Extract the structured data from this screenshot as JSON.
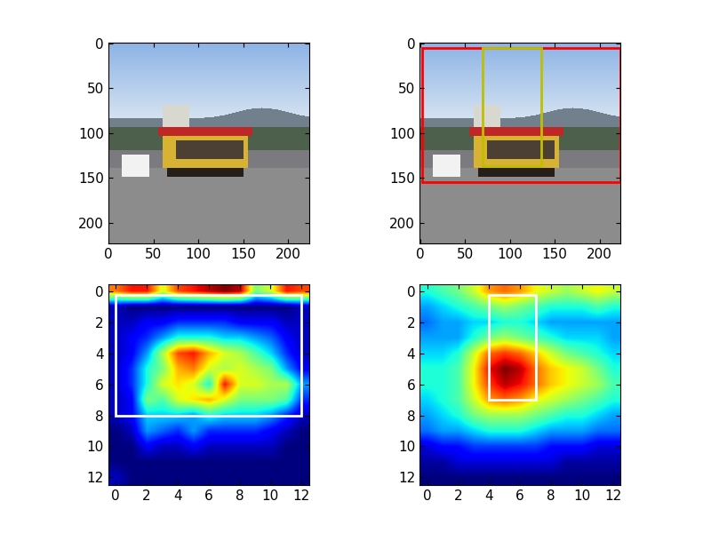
{
  "chart_data": [
    {
      "type": "image",
      "xlim": [
        -0.5,
        223.5
      ],
      "ylim": [
        223.5,
        -0.5
      ],
      "xticks": [
        0,
        50,
        100,
        150,
        200
      ],
      "yticks": [
        0,
        50,
        100,
        150,
        200
      ],
      "boxes": []
    },
    {
      "type": "image",
      "xlim": [
        -0.5,
        223.5
      ],
      "ylim": [
        223.5,
        -0.5
      ],
      "xticks": [
        0,
        50,
        100,
        150,
        200
      ],
      "yticks": [
        0,
        50,
        100,
        150,
        200
      ],
      "boxes": [
        {
          "x0": 2,
          "y0": 5,
          "x1": 223,
          "y1": 155,
          "color": "#ff0000"
        },
        {
          "x0": 70,
          "y0": 5,
          "x1": 135,
          "y1": 137,
          "color": "#bfbf00"
        }
      ]
    },
    {
      "type": "heatmap",
      "xlim": [
        -0.5,
        12.5
      ],
      "ylim": [
        12.5,
        -0.5
      ],
      "xticks": [
        0,
        2,
        4,
        6,
        8,
        10,
        12
      ],
      "yticks": [
        0,
        2,
        4,
        6,
        8,
        10,
        12
      ],
      "cells": [
        [
          0.75,
          0.85,
          0.85,
          0.6,
          0.8,
          0.85,
          0.9,
          0.95,
          0.9,
          0.5,
          0.6,
          0.85,
          0.8
        ],
        [
          0.1,
          0.05,
          0.05,
          0.05,
          0.05,
          0.05,
          0.05,
          0.05,
          0.05,
          0.05,
          0.05,
          0.05,
          0.1
        ],
        [
          0.1,
          0.1,
          0.15,
          0.15,
          0.2,
          0.2,
          0.2,
          0.2,
          0.15,
          0.15,
          0.15,
          0.1,
          0.1
        ],
        [
          0.1,
          0.15,
          0.2,
          0.3,
          0.4,
          0.4,
          0.4,
          0.35,
          0.35,
          0.3,
          0.25,
          0.15,
          0.1
        ],
        [
          0.1,
          0.15,
          0.3,
          0.55,
          0.8,
          0.85,
          0.7,
          0.6,
          0.55,
          0.45,
          0.35,
          0.2,
          0.1
        ],
        [
          0.1,
          0.2,
          0.4,
          0.5,
          0.7,
          0.75,
          0.6,
          0.55,
          0.6,
          0.55,
          0.5,
          0.3,
          0.15
        ],
        [
          0.1,
          0.2,
          0.4,
          0.6,
          0.65,
          0.6,
          0.4,
          0.85,
          0.6,
          0.6,
          0.55,
          0.55,
          0.3
        ],
        [
          0.1,
          0.15,
          0.5,
          0.45,
          0.6,
          0.65,
          0.7,
          0.6,
          0.5,
          0.5,
          0.5,
          0.45,
          0.2
        ],
        [
          0.1,
          0.15,
          0.35,
          0.35,
          0.35,
          0.3,
          0.4,
          0.35,
          0.35,
          0.35,
          0.3,
          0.2,
          0.1
        ],
        [
          0.05,
          0.1,
          0.3,
          0.25,
          0.2,
          0.3,
          0.2,
          0.2,
          0.2,
          0.2,
          0.15,
          0.1,
          0.05
        ],
        [
          0.05,
          0.05,
          0.15,
          0.1,
          0.1,
          0.15,
          0.1,
          0.1,
          0.1,
          0.1,
          0.1,
          0.05,
          0.05
        ],
        [
          0.05,
          0.05,
          0.05,
          0.05,
          0.05,
          0.05,
          0.05,
          0.05,
          0.05,
          0.05,
          0.05,
          0.05,
          0.05
        ],
        [
          0.1,
          0.05,
          0.05,
          0.05,
          0.05,
          0.05,
          0.05,
          0.05,
          0.05,
          0.05,
          0.05,
          0.05,
          0.05
        ]
      ],
      "boxes": [
        {
          "x0": 0,
          "y0": 0.2,
          "x1": 12,
          "y1": 8,
          "color": "#ffffff"
        }
      ]
    },
    {
      "type": "heatmap",
      "xlim": [
        -0.5,
        12.5
      ],
      "ylim": [
        12.5,
        -0.5
      ],
      "xticks": [
        0,
        2,
        4,
        6,
        8,
        10,
        12
      ],
      "yticks": [
        0,
        2,
        4,
        6,
        8,
        10,
        12
      ],
      "cells": [
        [
          0.4,
          0.45,
          0.5,
          0.6,
          0.75,
          0.8,
          0.75,
          0.65,
          0.6,
          0.55,
          0.6,
          0.65,
          0.6
        ],
        [
          0.3,
          0.35,
          0.4,
          0.45,
          0.5,
          0.55,
          0.5,
          0.45,
          0.4,
          0.4,
          0.4,
          0.45,
          0.4
        ],
        [
          0.25,
          0.3,
          0.3,
          0.35,
          0.35,
          0.4,
          0.4,
          0.35,
          0.3,
          0.3,
          0.3,
          0.3,
          0.3
        ],
        [
          0.3,
          0.3,
          0.3,
          0.4,
          0.5,
          0.55,
          0.5,
          0.45,
          0.4,
          0.35,
          0.35,
          0.35,
          0.3
        ],
        [
          0.35,
          0.35,
          0.4,
          0.6,
          0.8,
          0.85,
          0.8,
          0.7,
          0.6,
          0.5,
          0.45,
          0.4,
          0.35
        ],
        [
          0.4,
          0.4,
          0.45,
          0.65,
          0.9,
          1.0,
          0.95,
          0.8,
          0.7,
          0.65,
          0.6,
          0.5,
          0.4
        ],
        [
          0.4,
          0.4,
          0.45,
          0.65,
          0.85,
          0.95,
          0.9,
          0.8,
          0.7,
          0.65,
          0.6,
          0.55,
          0.45
        ],
        [
          0.35,
          0.4,
          0.45,
          0.6,
          0.75,
          0.8,
          0.75,
          0.65,
          0.6,
          0.55,
          0.5,
          0.45,
          0.4
        ],
        [
          0.3,
          0.35,
          0.4,
          0.5,
          0.55,
          0.55,
          0.55,
          0.5,
          0.45,
          0.4,
          0.4,
          0.35,
          0.3
        ],
        [
          0.25,
          0.3,
          0.3,
          0.35,
          0.4,
          0.4,
          0.4,
          0.35,
          0.3,
          0.3,
          0.3,
          0.25,
          0.25
        ],
        [
          0.1,
          0.15,
          0.15,
          0.2,
          0.2,
          0.2,
          0.2,
          0.2,
          0.15,
          0.15,
          0.15,
          0.1,
          0.1
        ],
        [
          0.05,
          0.05,
          0.1,
          0.1,
          0.1,
          0.1,
          0.1,
          0.1,
          0.1,
          0.05,
          0.05,
          0.05,
          0.05
        ],
        [
          0.02,
          0.02,
          0.02,
          0.02,
          0.02,
          0.02,
          0.02,
          0.02,
          0.02,
          0.02,
          0.02,
          0.02,
          0.02
        ]
      ],
      "boxes": [
        {
          "x0": 4,
          "y0": 0.2,
          "x1": 7,
          "y1": 7,
          "color": "#ffffff"
        }
      ]
    }
  ]
}
